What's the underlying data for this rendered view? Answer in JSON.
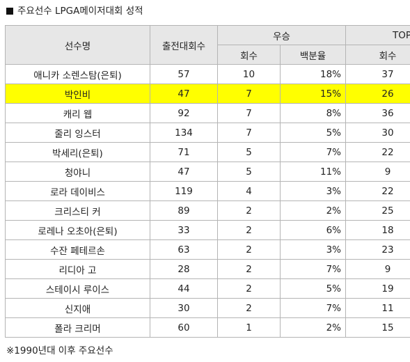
{
  "title": "주요선수 LPGA메이저대회 성적",
  "headers": {
    "player": "선수명",
    "starts": "출전대회수",
    "wins_group": "우승",
    "top10_group": "TOP",
    "wins_count": "회수",
    "wins_pct": "백분율",
    "top10_count": "회수"
  },
  "rows": [
    {
      "name": "애니카 소렌스탐(은퇴)",
      "starts": "57",
      "wins": "10",
      "pct": "18%",
      "top10": "37",
      "highlight": false
    },
    {
      "name": "박인비",
      "starts": "47",
      "wins": "7",
      "pct": "15%",
      "top10": "26",
      "highlight": true
    },
    {
      "name": "캐리 웹",
      "starts": "92",
      "wins": "7",
      "pct": "8%",
      "top10": "36",
      "highlight": false
    },
    {
      "name": "줄리 잉스터",
      "starts": "134",
      "wins": "7",
      "pct": "5%",
      "top10": "30",
      "highlight": false
    },
    {
      "name": "박세리(은퇴)",
      "starts": "71",
      "wins": "5",
      "pct": "7%",
      "top10": "22",
      "highlight": false
    },
    {
      "name": "청야니",
      "starts": "47",
      "wins": "5",
      "pct": "11%",
      "top10": "9",
      "highlight": false
    },
    {
      "name": "로라 데이비스",
      "starts": "119",
      "wins": "4",
      "pct": "3%",
      "top10": "22",
      "highlight": false
    },
    {
      "name": "크리스티 커",
      "starts": "89",
      "wins": "2",
      "pct": "2%",
      "top10": "25",
      "highlight": false
    },
    {
      "name": "로레나 오초아(은퇴)",
      "starts": "33",
      "wins": "2",
      "pct": "6%",
      "top10": "18",
      "highlight": false
    },
    {
      "name": "수잔 페테르손",
      "starts": "63",
      "wins": "2",
      "pct": "3%",
      "top10": "23",
      "highlight": false
    },
    {
      "name": "리디아 고",
      "starts": "28",
      "wins": "2",
      "pct": "7%",
      "top10": "9",
      "highlight": false
    },
    {
      "name": "스테이시 루이스",
      "starts": "44",
      "wins": "2",
      "pct": "5%",
      "top10": "19",
      "highlight": false
    },
    {
      "name": "신지애",
      "starts": "30",
      "wins": "2",
      "pct": "7%",
      "top10": "11",
      "highlight": false
    },
    {
      "name": "폴라 크리머",
      "starts": "60",
      "wins": "1",
      "pct": "2%",
      "top10": "15",
      "highlight": false
    }
  ],
  "footnote": "※1990년대 이후 주요선수",
  "colors": {
    "header_bg": "#e7e7e7",
    "highlight": "#ffff00",
    "border": "#b4b4b4",
    "text": "#222222"
  }
}
